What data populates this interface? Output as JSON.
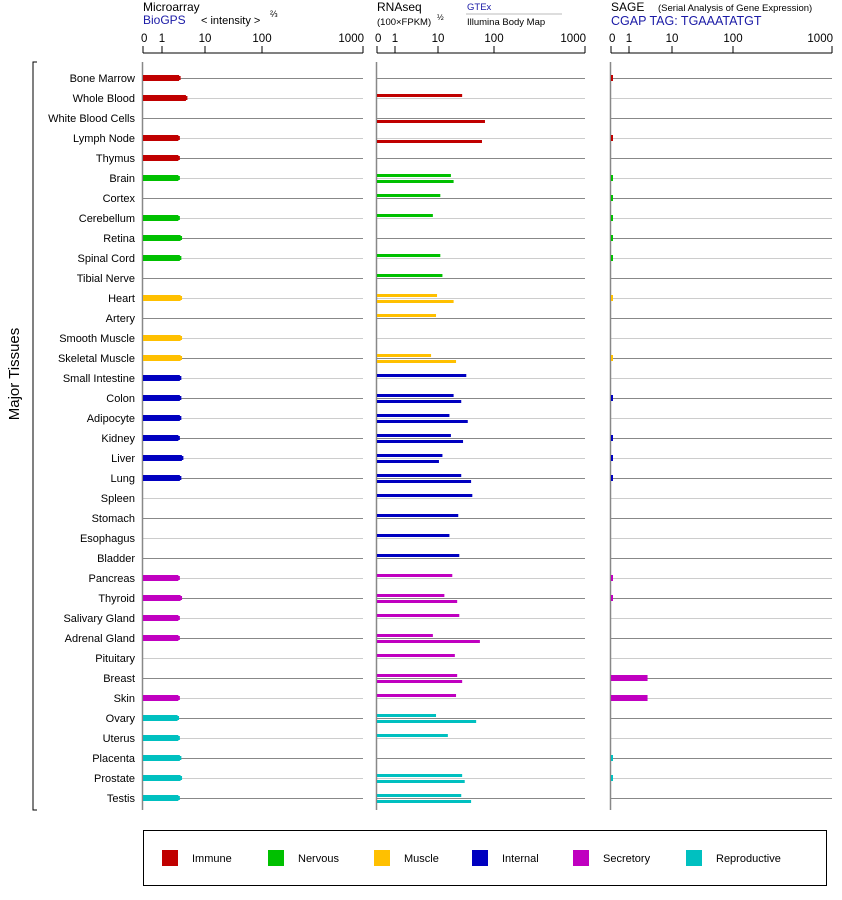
{
  "headers": {
    "microarray": {
      "title": "Microarray",
      "source": "BioGPS",
      "unit": "< intensity >",
      "unit_exp": "⅔"
    },
    "rnaseq": {
      "title": "RNAseq",
      "unit": "(100×FPKM)",
      "unit_exp": "½",
      "source1": "GTEx",
      "source2": "Illumina Body Map"
    },
    "sage": {
      "title": "SAGE",
      "subtitle": "(Serial Analysis of Gene Expression)",
      "tag": "CGAP TAG: TGAAATATGT"
    }
  },
  "chart_data": {
    "type": "bar",
    "orientation": "horizontal",
    "ylabel": "Major Tissues",
    "axis_ticks": [
      "0",
      "1",
      "10",
      "100",
      "1000"
    ],
    "xlim": [
      0,
      1000
    ],
    "groups": [
      {
        "name": "Immune",
        "color": "#c00000"
      },
      {
        "name": "Nervous",
        "color": "#00c000"
      },
      {
        "name": "Muscle",
        "color": "#ffc000"
      },
      {
        "name": "Internal",
        "color": "#0000c0"
      },
      {
        "name": "Secretory",
        "color": "#c000c0"
      },
      {
        "name": "Reproductive",
        "color": "#00c0c0"
      }
    ],
    "tissues": [
      {
        "name": "Bone Marrow",
        "group": 0,
        "microarray": 2.5,
        "gtex": null,
        "illumina": null,
        "sage": 0.1
      },
      {
        "name": "Whole Blood",
        "group": 0,
        "microarray": 3.6,
        "gtex": 27,
        "illumina": null,
        "sage": null
      },
      {
        "name": "White Blood Cells",
        "group": 0,
        "microarray": null,
        "gtex": null,
        "illumina": 69,
        "sage": null
      },
      {
        "name": "Lymph Node",
        "group": 0,
        "microarray": 2.4,
        "gtex": null,
        "illumina": 61,
        "sage": 0.1
      },
      {
        "name": "Thymus",
        "group": 0,
        "microarray": 2.4,
        "gtex": null,
        "illumina": null,
        "sage": null
      },
      {
        "name": "Brain",
        "group": 1,
        "microarray": 2.4,
        "gtex": 17,
        "illumina": 19,
        "sage": 0.1
      },
      {
        "name": "Cortex",
        "group": 1,
        "microarray": null,
        "gtex": 11,
        "illumina": null,
        "sage": 0.1
      },
      {
        "name": "Cerebellum",
        "group": 1,
        "microarray": 2.4,
        "gtex": 7.6,
        "illumina": null,
        "sage": 0.1
      },
      {
        "name": "Retina",
        "group": 1,
        "microarray": 2.7,
        "gtex": null,
        "illumina": null,
        "sage": 0.1
      },
      {
        "name": "Spinal Cord",
        "group": 1,
        "microarray": 2.6,
        "gtex": 11,
        "illumina": null,
        "sage": 0.1
      },
      {
        "name": "Tibial Nerve",
        "group": 1,
        "microarray": null,
        "gtex": 12,
        "illumina": null,
        "sage": null
      },
      {
        "name": "Heart",
        "group": 2,
        "microarray": 2.7,
        "gtex": 9.5,
        "illumina": 19,
        "sage": 0.1
      },
      {
        "name": "Artery",
        "group": 2,
        "microarray": null,
        "gtex": 9,
        "illumina": null,
        "sage": null
      },
      {
        "name": "Smooth Muscle",
        "group": 2,
        "microarray": 2.7,
        "gtex": null,
        "illumina": null,
        "sage": null
      },
      {
        "name": "Skeletal Muscle",
        "group": 2,
        "microarray": 2.7,
        "gtex": 6.9,
        "illumina": 21,
        "sage": 0.1
      },
      {
        "name": "Small Intestine",
        "group": 3,
        "microarray": 2.6,
        "gtex": 32,
        "illumina": null,
        "sage": null
      },
      {
        "name": "Colon",
        "group": 3,
        "microarray": 2.6,
        "gtex": 19,
        "illumina": 26,
        "sage": 0.1
      },
      {
        "name": "Adipocyte",
        "group": 3,
        "microarray": 2.6,
        "gtex": 16,
        "illumina": 34,
        "sage": null
      },
      {
        "name": "Kidney",
        "group": 3,
        "microarray": 2.4,
        "gtex": 17,
        "illumina": 28,
        "sage": 0.1
      },
      {
        "name": "Liver",
        "group": 3,
        "microarray": 2.9,
        "gtex": 12,
        "illumina": 10.4,
        "sage": 0.1
      },
      {
        "name": "Lung",
        "group": 3,
        "microarray": 2.6,
        "gtex": 26,
        "illumina": 39,
        "sage": 0.1
      },
      {
        "name": "Spleen",
        "group": 3,
        "microarray": null,
        "gtex": 41,
        "illumina": null,
        "sage": null
      },
      {
        "name": "Stomach",
        "group": 3,
        "microarray": null,
        "gtex": 23,
        "illumina": null,
        "sage": null
      },
      {
        "name": "Esophagus",
        "group": 3,
        "microarray": null,
        "gtex": 16,
        "illumina": null,
        "sage": null
      },
      {
        "name": "Bladder",
        "group": 3,
        "microarray": null,
        "gtex": 24,
        "illumina": null,
        "sage": null
      },
      {
        "name": "Pancreas",
        "group": 4,
        "microarray": 2.4,
        "gtex": 18,
        "illumina": null,
        "sage": 0.1
      },
      {
        "name": "Thyroid",
        "group": 4,
        "microarray": 2.7,
        "gtex": 13,
        "illumina": 22,
        "sage": 0.1
      },
      {
        "name": "Salivary Gland",
        "group": 4,
        "microarray": 2.4,
        "gtex": 24,
        "illumina": null,
        "sage": null
      },
      {
        "name": "Adrenal Gland",
        "group": 4,
        "microarray": 2.4,
        "gtex": 7.6,
        "illumina": 56,
        "sage": null
      },
      {
        "name": "Pituitary",
        "group": 4,
        "microarray": null,
        "gtex": 20,
        "illumina": null,
        "sage": null
      },
      {
        "name": "Breast",
        "group": 4,
        "microarray": null,
        "gtex": 22,
        "illumina": 27,
        "sage": 2.7
      },
      {
        "name": "Skin",
        "group": 4,
        "microarray": 2.4,
        "gtex": 21,
        "illumina": null,
        "sage": 2.7
      },
      {
        "name": "Ovary",
        "group": 5,
        "microarray": 2.3,
        "gtex": 9,
        "illumina": 48,
        "sage": null
      },
      {
        "name": "Uterus",
        "group": 5,
        "microarray": 2.4,
        "gtex": 15,
        "illumina": null,
        "sage": null
      },
      {
        "name": "Placenta",
        "group": 5,
        "microarray": 2.6,
        "gtex": null,
        "illumina": null,
        "sage": 0.1
      },
      {
        "name": "Prostate",
        "group": 5,
        "microarray": 2.7,
        "gtex": 27,
        "illumina": 30,
        "sage": 0.1
      },
      {
        "name": "Testis",
        "group": 5,
        "microarray": 2.4,
        "gtex": 26,
        "illumina": 39,
        "sage": null
      }
    ]
  }
}
